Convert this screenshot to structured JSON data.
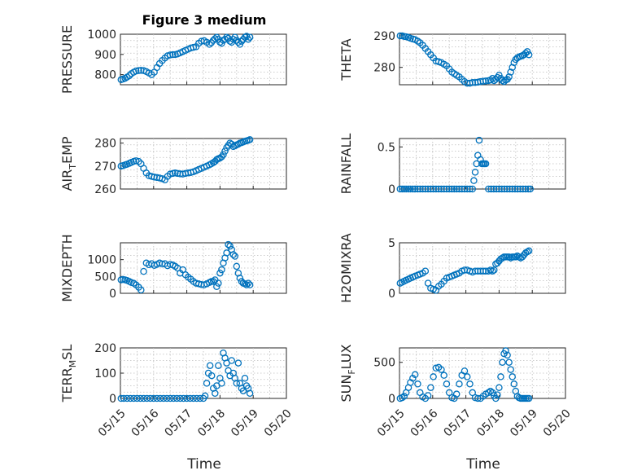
{
  "figure": {
    "title": "Figure 3 medium",
    "xlabel": "Time",
    "marker_color": "#0072bd"
  },
  "chart_data": [
    {
      "type": "scatter",
      "ylabel": "PRESSURE",
      "ylabel_base": "PRESSURE",
      "ylabel_sub": "",
      "ylabel_rest": "",
      "ylim": [
        750,
        1000
      ],
      "yticks": [
        800,
        900,
        1000
      ],
      "xlim": [
        "05/15",
        "05/19"
      ],
      "xtick_labels": [],
      "grid": true,
      "x": [
        0.02,
        0.08,
        0.14,
        0.2,
        0.27,
        0.33,
        0.4,
        0.47,
        0.55,
        0.62,
        0.7,
        0.78,
        0.86,
        0.94,
        1.02,
        1.1,
        1.18,
        1.26,
        1.34,
        1.42,
        1.5,
        1.58,
        1.65,
        1.72,
        1.8,
        1.88,
        1.96,
        2.04,
        2.12,
        2.2,
        2.28,
        2.36,
        2.44,
        2.52,
        2.6,
        2.68,
        2.74,
        2.8,
        2.85,
        2.9,
        2.95,
        3.0,
        3.05,
        3.1,
        3.15,
        3.2,
        3.25,
        3.3,
        3.35,
        3.4,
        3.45,
        3.5,
        3.55,
        3.6,
        3.65,
        3.7,
        3.75,
        3.8,
        3.85,
        3.9
      ],
      "values": [
        775,
        778,
        782,
        788,
        795,
        805,
        812,
        818,
        820,
        821,
        820,
        815,
        808,
        800,
        812,
        835,
        855,
        870,
        882,
        893,
        897,
        899,
        899,
        902,
        908,
        914,
        920,
        926,
        932,
        935,
        938,
        955,
        965,
        968,
        960,
        950,
        958,
        970,
        978,
        985,
        975,
        960,
        955,
        970,
        975,
        985,
        980,
        965,
        960,
        975,
        985,
        970,
        960,
        950,
        965,
        975,
        985,
        990,
        975,
        985
      ]
    },
    {
      "type": "scatter",
      "ylabel": "THETA",
      "ylabel_base": "THETA",
      "ylabel_sub": "",
      "ylabel_rest": "",
      "ylim": [
        274.5,
        290.5
      ],
      "yticks": [
        280,
        290
      ],
      "xlim": [
        "05/15",
        "05/19"
      ],
      "xtick_labels": [],
      "grid": true,
      "x": [
        0.02,
        0.08,
        0.14,
        0.2,
        0.27,
        0.33,
        0.4,
        0.47,
        0.55,
        0.62,
        0.7,
        0.78,
        0.86,
        0.94,
        1.02,
        1.1,
        1.18,
        1.26,
        1.34,
        1.42,
        1.5,
        1.58,
        1.65,
        1.72,
        1.8,
        1.88,
        1.96,
        2.04,
        2.12,
        2.2,
        2.28,
        2.36,
        2.44,
        2.52,
        2.6,
        2.68,
        2.74,
        2.8,
        2.85,
        2.9,
        2.95,
        3.0,
        3.05,
        3.1,
        3.15,
        3.2,
        3.25,
        3.3,
        3.35,
        3.4,
        3.45,
        3.5,
        3.55,
        3.6,
        3.65,
        3.7,
        3.75,
        3.8,
        3.85,
        3.9
      ],
      "values": [
        290,
        290,
        289.8,
        289.7,
        289.5,
        289.2,
        289,
        288.8,
        288.3,
        287.8,
        287,
        286,
        285,
        284,
        283,
        282,
        281.8,
        281.5,
        281,
        280.5,
        279.5,
        278.5,
        278,
        277.5,
        277,
        276.2,
        275.5,
        275,
        275,
        275.2,
        275.2,
        275.3,
        275.5,
        275.6,
        275.7,
        275.8,
        276,
        276.5,
        275.8,
        276.2,
        276.8,
        277.5,
        276.5,
        275.8,
        275.5,
        276,
        276.2,
        277,
        278.5,
        280,
        281.5,
        282.5,
        283,
        283.3,
        283.5,
        283.7,
        284,
        284.5,
        285,
        284
      ]
    },
    {
      "type": "scatter",
      "ylabel": "AIR_TEMP",
      "ylabel_base": "AIR",
      "ylabel_sub": "T",
      "ylabel_rest": "EMP",
      "ylim": [
        260,
        282
      ],
      "yticks": [
        260,
        270,
        280
      ],
      "xlim": [
        "05/15",
        "05/19"
      ],
      "xtick_labels": [],
      "grid": true,
      "x": [
        0.02,
        0.08,
        0.14,
        0.2,
        0.27,
        0.33,
        0.4,
        0.47,
        0.55,
        0.62,
        0.7,
        0.78,
        0.86,
        0.94,
        1.02,
        1.1,
        1.18,
        1.26,
        1.34,
        1.42,
        1.5,
        1.58,
        1.65,
        1.72,
        1.8,
        1.88,
        1.96,
        2.04,
        2.12,
        2.2,
        2.28,
        2.36,
        2.44,
        2.52,
        2.6,
        2.68,
        2.74,
        2.8,
        2.85,
        2.9,
        2.95,
        3.0,
        3.05,
        3.1,
        3.15,
        3.2,
        3.25,
        3.3,
        3.35,
        3.4,
        3.45,
        3.5,
        3.55,
        3.6,
        3.65,
        3.7,
        3.75,
        3.8,
        3.85,
        3.9
      ],
      "values": [
        270,
        270.2,
        270.5,
        270.8,
        271.2,
        271.6,
        272,
        272.3,
        272,
        271,
        269,
        267,
        265.8,
        265.5,
        265.2,
        265,
        264.8,
        264.5,
        264,
        265.5,
        266.5,
        266.8,
        267,
        266.8,
        266.6,
        266.5,
        266.8,
        267,
        267.2,
        267.5,
        268,
        268.5,
        269,
        269.5,
        270,
        270.5,
        271,
        271.5,
        272,
        272.8,
        273.2,
        273.5,
        274,
        275,
        276.5,
        278,
        279,
        280,
        279.5,
        278.5,
        278.8,
        279.2,
        279.5,
        280,
        280.2,
        280.5,
        280.8,
        281,
        281.2,
        281.5
      ]
    },
    {
      "type": "scatter",
      "ylabel": "RAINFALL",
      "ylabel_base": "RAINFALL",
      "ylabel_sub": "",
      "ylabel_rest": "",
      "ylim": [
        0,
        0.6
      ],
      "yticks": [
        0,
        0.5
      ],
      "ytick_labels": [
        "0",
        "0.5"
      ],
      "xlim": [
        "05/15",
        "05/19"
      ],
      "xtick_labels": [],
      "grid": true,
      "x": [
        0.02,
        0.08,
        0.14,
        0.2,
        0.27,
        0.33,
        0.4,
        0.47,
        0.55,
        0.62,
        0.7,
        0.78,
        0.86,
        0.94,
        1.02,
        1.1,
        1.18,
        1.26,
        1.34,
        1.42,
        1.5,
        1.58,
        1.65,
        1.72,
        1.8,
        1.88,
        1.96,
        2.04,
        2.12,
        2.2,
        2.24,
        2.28,
        2.32,
        2.36,
        2.4,
        2.44,
        2.48,
        2.52,
        2.56,
        2.6,
        2.68,
        2.76,
        2.84,
        2.92,
        3.0,
        3.08,
        3.16,
        3.24,
        3.32,
        3.4,
        3.48,
        3.56,
        3.64,
        3.72,
        3.8,
        3.88,
        3.94
      ],
      "values": [
        0,
        0,
        0,
        0,
        0,
        0,
        0,
        0,
        0,
        0,
        0,
        0,
        0,
        0,
        0,
        0,
        0,
        0,
        0,
        0,
        0,
        0,
        0,
        0,
        0,
        0,
        0,
        0,
        0,
        0,
        0.1,
        0.2,
        0.3,
        0.4,
        0.58,
        0.35,
        0.3,
        0.3,
        0.3,
        0.3,
        0,
        0,
        0,
        0,
        0,
        0,
        0,
        0,
        0,
        0,
        0,
        0,
        0,
        0,
        0,
        0,
        0
      ]
    },
    {
      "type": "scatter",
      "ylabel": "MIXDEPTH",
      "ylabel_base": "MIXDEPTH",
      "ylabel_sub": "",
      "ylabel_rest": "",
      "ylim": [
        0,
        1500
      ],
      "yticks": [
        0,
        500,
        1000
      ],
      "xlim": [
        "05/15",
        "05/19"
      ],
      "xtick_labels": [],
      "grid": true,
      "x": [
        0.02,
        0.08,
        0.14,
        0.2,
        0.27,
        0.33,
        0.4,
        0.47,
        0.55,
        0.62,
        0.7,
        0.78,
        0.86,
        0.94,
        1.02,
        1.1,
        1.18,
        1.26,
        1.34,
        1.42,
        1.5,
        1.58,
        1.65,
        1.72,
        1.8,
        1.88,
        1.96,
        2.04,
        2.12,
        2.2,
        2.28,
        2.36,
        2.44,
        2.52,
        2.6,
        2.68,
        2.74,
        2.8,
        2.85,
        2.9,
        2.95,
        3.0,
        3.05,
        3.1,
        3.15,
        3.2,
        3.25,
        3.3,
        3.35,
        3.4,
        3.45,
        3.5,
        3.55,
        3.6,
        3.65,
        3.7,
        3.75,
        3.8,
        3.85,
        3.9
      ],
      "values": [
        400,
        410,
        400,
        380,
        350,
        320,
        300,
        250,
        180,
        100,
        650,
        900,
        850,
        880,
        830,
        860,
        900,
        870,
        880,
        820,
        860,
        840,
        800,
        750,
        600,
        700,
        550,
        480,
        420,
        350,
        300,
        280,
        260,
        250,
        280,
        320,
        350,
        350,
        400,
        200,
        300,
        600,
        700,
        900,
        1050,
        1200,
        1450,
        1400,
        1300,
        1150,
        1100,
        800,
        600,
        450,
        350,
        300,
        280,
        250,
        300,
        250
      ]
    },
    {
      "type": "scatter",
      "ylabel": "H2OMIXRA",
      "ylabel_base": "H2OMIXRA",
      "ylabel_sub": "",
      "ylabel_rest": "",
      "ylim": [
        0,
        5
      ],
      "yticks": [
        0,
        5
      ],
      "xlim": [
        "05/15",
        "05/19"
      ],
      "xtick_labels": [],
      "grid": true,
      "x": [
        0.02,
        0.08,
        0.14,
        0.2,
        0.27,
        0.33,
        0.4,
        0.47,
        0.55,
        0.62,
        0.7,
        0.78,
        0.86,
        0.94,
        1.02,
        1.1,
        1.18,
        1.26,
        1.34,
        1.42,
        1.5,
        1.58,
        1.65,
        1.72,
        1.8,
        1.88,
        1.96,
        2.04,
        2.12,
        2.2,
        2.28,
        2.36,
        2.44,
        2.52,
        2.6,
        2.68,
        2.74,
        2.8,
        2.85,
        2.9,
        2.95,
        3.0,
        3.05,
        3.1,
        3.15,
        3.2,
        3.25,
        3.3,
        3.35,
        3.4,
        3.45,
        3.5,
        3.55,
        3.6,
        3.65,
        3.7,
        3.75,
        3.8,
        3.85,
        3.9
      ],
      "values": [
        1,
        1.1,
        1.2,
        1.3,
        1.4,
        1.5,
        1.6,
        1.7,
        1.8,
        1.9,
        2,
        2.2,
        1,
        0.5,
        0.4,
        0.3,
        0.7,
        0.9,
        1.2,
        1.5,
        1.6,
        1.7,
        1.8,
        1.9,
        2,
        2.2,
        2.3,
        2.3,
        2.2,
        2.1,
        2.2,
        2.2,
        2.2,
        2.2,
        2.2,
        2.2,
        2.3,
        2.2,
        2.3,
        2.9,
        3,
        3.2,
        3.4,
        3.5,
        3.6,
        3.6,
        3.6,
        3.6,
        3.5,
        3.6,
        3.6,
        3.6,
        3.7,
        3.6,
        3.5,
        3.6,
        3.8,
        4,
        4.1,
        4.2
      ]
    },
    {
      "type": "scatter",
      "ylabel": "TERR_MSL",
      "ylabel_base": "TERR",
      "ylabel_sub": "M",
      "ylabel_rest": "SL",
      "ylim": [
        0,
        200
      ],
      "yticks": [
        0,
        100,
        200
      ],
      "xlim": [
        "05/15",
        "05/20"
      ],
      "xtick_labels": [
        "05/15",
        "05/16",
        "05/17",
        "05/18",
        "05/19",
        "05/20"
      ],
      "grid": true,
      "x": [
        0.02,
        0.1,
        0.2,
        0.3,
        0.4,
        0.5,
        0.6,
        0.7,
        0.8,
        0.9,
        1.0,
        1.1,
        1.2,
        1.3,
        1.4,
        1.5,
        1.6,
        1.7,
        1.8,
        1.9,
        2.0,
        2.1,
        2.2,
        2.3,
        2.4,
        2.5,
        2.55,
        2.6,
        2.65,
        2.7,
        2.75,
        2.8,
        2.85,
        2.9,
        2.95,
        3.0,
        3.05,
        3.1,
        3.15,
        3.2,
        3.25,
        3.3,
        3.35,
        3.4,
        3.45,
        3.5,
        3.55,
        3.6,
        3.65,
        3.7,
        3.75,
        3.8,
        3.85,
        3.9
      ],
      "values": [
        0,
        0,
        0,
        0,
        0,
        0,
        0,
        0,
        0,
        0,
        0,
        0,
        0,
        0,
        0,
        0,
        0,
        0,
        0,
        0,
        0,
        0,
        0,
        0,
        0,
        0,
        10,
        60,
        100,
        130,
        90,
        40,
        20,
        50,
        130,
        80,
        60,
        180,
        160,
        140,
        110,
        90,
        150,
        100,
        80,
        60,
        140,
        60,
        40,
        30,
        80,
        50,
        40,
        20
      ]
    },
    {
      "type": "scatter",
      "ylabel": "SUN_FLUX",
      "ylabel_base": "SUN",
      "ylabel_sub": "F",
      "ylabel_rest": "LUX",
      "ylim": [
        0,
        700
      ],
      "yticks": [
        0,
        500
      ],
      "xlim": [
        "05/15",
        "05/20"
      ],
      "xtick_labels": [
        "05/15",
        "05/16",
        "05/17",
        "05/18",
        "05/19",
        "05/20"
      ],
      "grid": true,
      "x": [
        0.02,
        0.08,
        0.14,
        0.2,
        0.27,
        0.33,
        0.4,
        0.47,
        0.55,
        0.62,
        0.7,
        0.78,
        0.86,
        0.94,
        1.02,
        1.1,
        1.18,
        1.26,
        1.34,
        1.42,
        1.5,
        1.58,
        1.65,
        1.72,
        1.8,
        1.88,
        1.96,
        2.04,
        2.12,
        2.2,
        2.28,
        2.36,
        2.44,
        2.52,
        2.6,
        2.68,
        2.74,
        2.8,
        2.85,
        2.9,
        2.95,
        3.0,
        3.05,
        3.1,
        3.15,
        3.2,
        3.25,
        3.3,
        3.35,
        3.4,
        3.45,
        3.5,
        3.55,
        3.6,
        3.65,
        3.7,
        3.75,
        3.8,
        3.85,
        3.9
      ],
      "values": [
        0,
        10,
        30,
        80,
        150,
        220,
        280,
        330,
        200,
        80,
        20,
        0,
        40,
        150,
        300,
        420,
        430,
        400,
        320,
        200,
        80,
        10,
        0,
        60,
        200,
        320,
        380,
        300,
        200,
        80,
        10,
        0,
        0,
        30,
        60,
        80,
        100,
        80,
        40,
        0,
        50,
        150,
        300,
        500,
        620,
        660,
        600,
        500,
        400,
        300,
        200,
        100,
        30,
        10,
        0,
        0,
        0,
        0,
        0,
        0
      ]
    }
  ]
}
